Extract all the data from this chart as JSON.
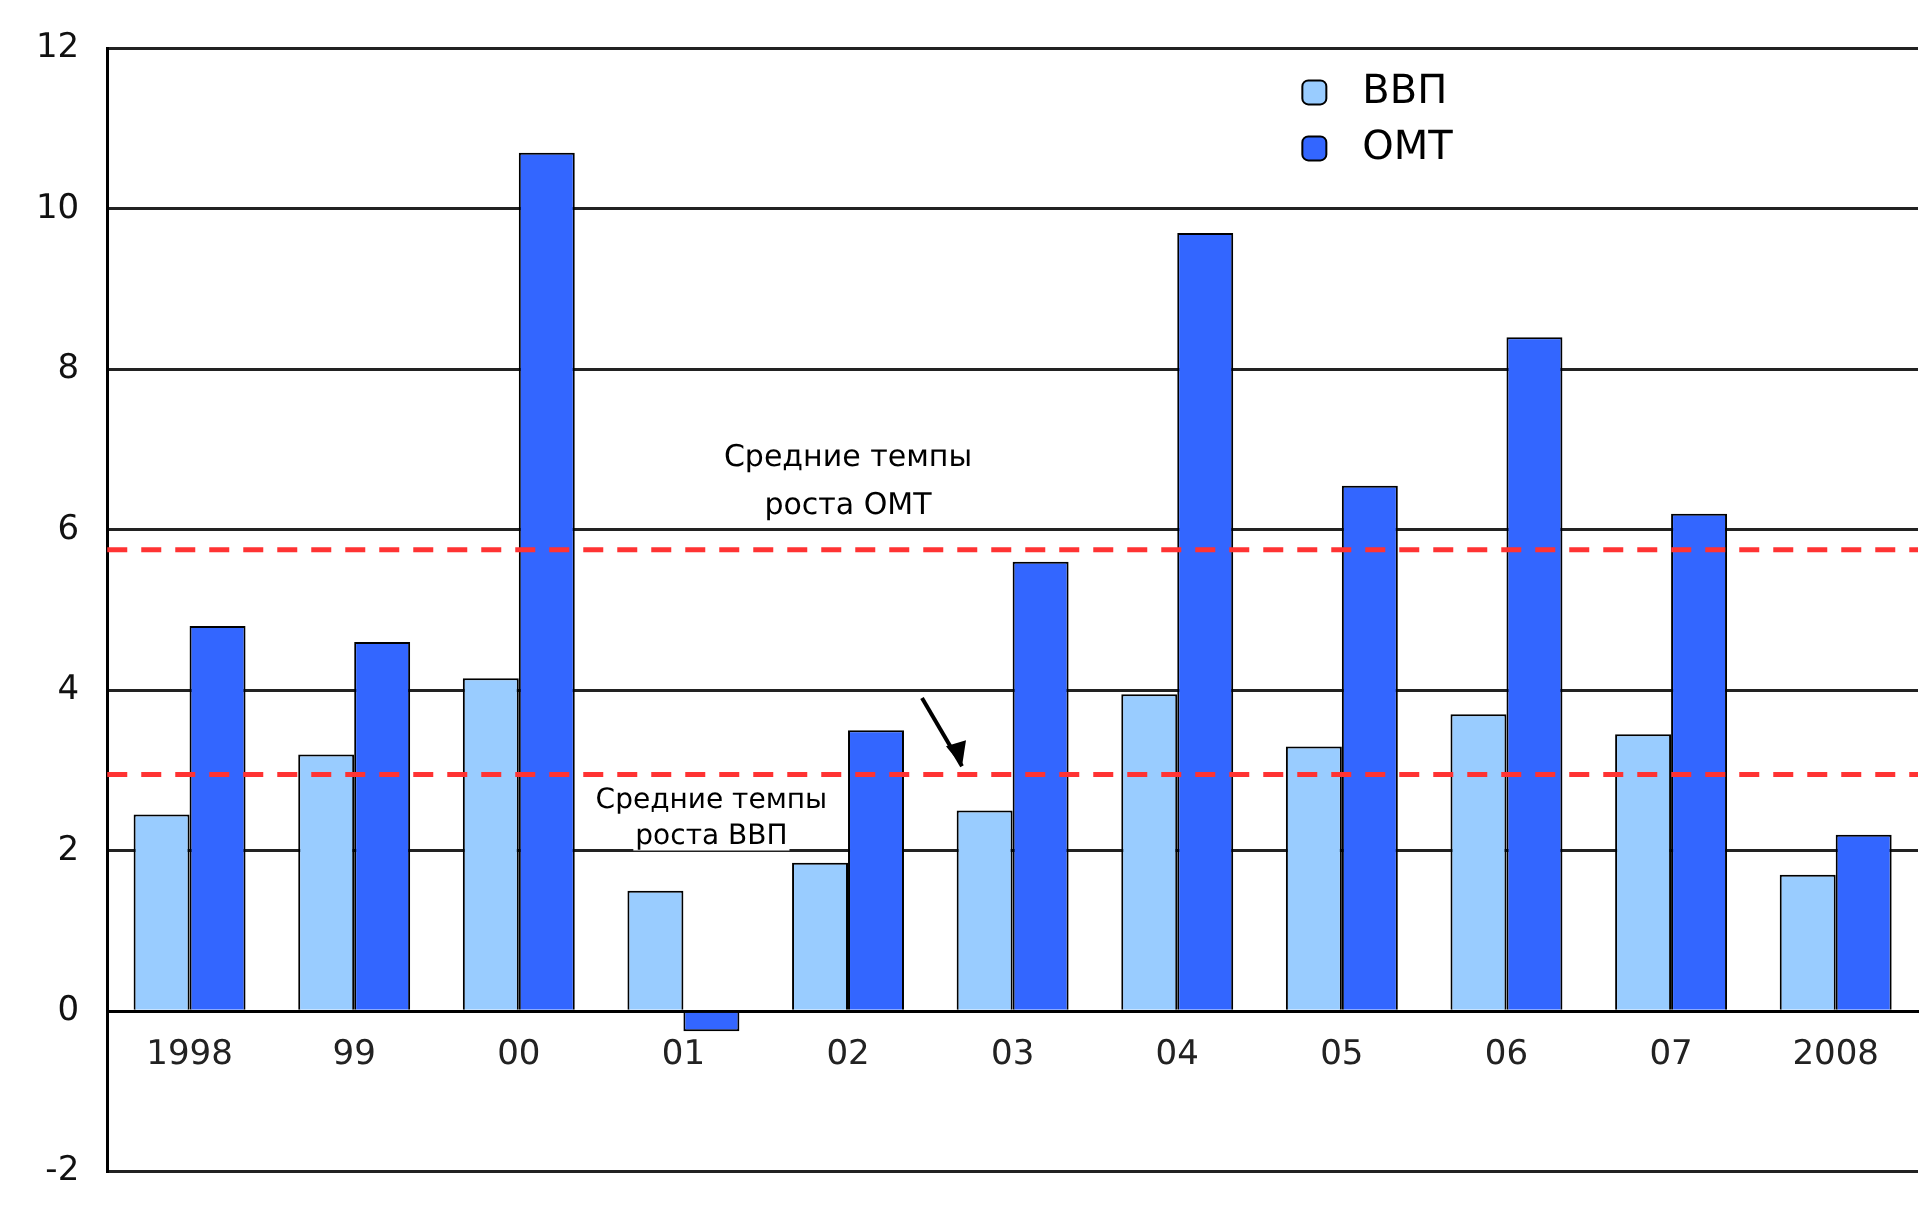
{
  "chart_data": {
    "type": "bar",
    "categories": [
      "1998",
      "99",
      "00",
      "01",
      "02",
      "03",
      "04",
      "05",
      "06",
      "07",
      "2008"
    ],
    "series": [
      {
        "name": "ВВП",
        "color": "#99ccff",
        "values": [
          2.45,
          3.2,
          4.15,
          1.5,
          1.85,
          2.5,
          3.95,
          3.3,
          3.7,
          3.45,
          1.7
        ]
      },
      {
        "name": "ОМТ",
        "color": "#3366ff",
        "values": [
          4.8,
          4.6,
          10.7,
          -0.25,
          3.5,
          5.6,
          9.7,
          6.55,
          8.4,
          6.2,
          2.2
        ]
      }
    ],
    "ylim": [
      -2,
      12
    ],
    "yticks": [
      -2,
      0,
      2,
      4,
      6,
      8,
      10,
      12
    ],
    "grid": "y",
    "legend": "top right",
    "ref_lines": [
      {
        "axis": "y",
        "value": 5.75,
        "label": "Средние темпы роста ОМТ",
        "color": "#ff3333",
        "line_style": "dashed"
      },
      {
        "axis": "y",
        "value": 2.95,
        "label": "Средние темпы роста ВВП",
        "color": "#ff3333",
        "line_style": "dashed"
      }
    ]
  }
}
